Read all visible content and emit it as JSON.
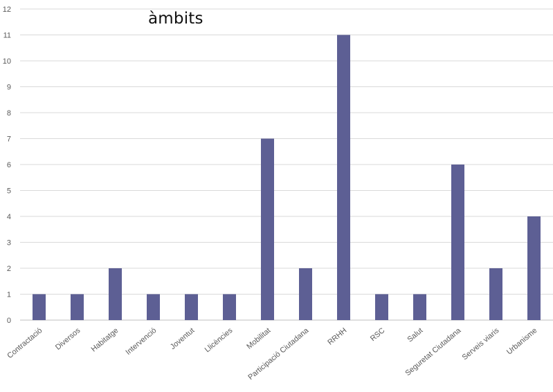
{
  "chart_data": {
    "type": "bar",
    "title": "àmbits",
    "xlabel": "",
    "ylabel": "",
    "ylim": [
      0,
      12
    ],
    "yticks": [
      0,
      1,
      2,
      3,
      4,
      5,
      6,
      7,
      8,
      9,
      10,
      11,
      12
    ],
    "grid": true,
    "legend": "none",
    "bar_color": "#5d5f94",
    "grid_color": "#d9d9d9",
    "categories": [
      "Contractació",
      "Diversos",
      "Habitatge",
      "Intervenció",
      "Joventut",
      "Llicències",
      "Mobilitat",
      "Participació Ciutadana",
      "RRHH",
      "RSC",
      "Salut",
      "Seguretat Ciutadana",
      "Serveis viaris",
      "Urbanisme"
    ],
    "values": [
      1,
      1,
      2,
      1,
      1,
      1,
      7,
      2,
      11,
      1,
      1,
      6,
      2,
      4
    ]
  }
}
